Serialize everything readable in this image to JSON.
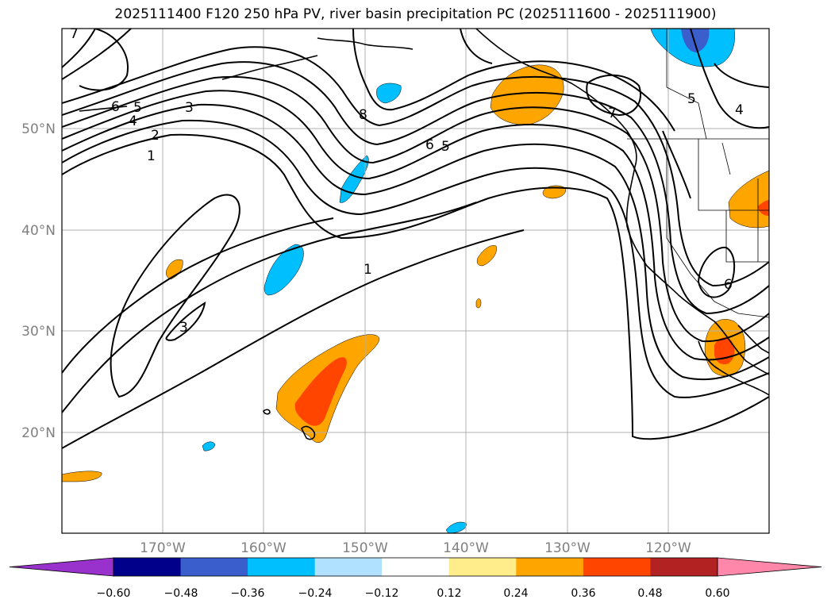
{
  "title": "2025111400 F120 250 hPa PV, river basin precipitation PC (2025111600 - 2025111900)",
  "latitude_labels": [
    "50°N",
    "40°N",
    "30°N",
    "20°N"
  ],
  "longitude_labels": [
    "170°W",
    "160°W",
    "150°W",
    "140°W",
    "130°W",
    "120°W"
  ],
  "contour_labels": [
    "7",
    "6",
    "5",
    "4",
    "3",
    "2",
    "1",
    "8",
    "6",
    "5",
    "7",
    "5",
    "4",
    "1",
    "3",
    "6"
  ],
  "colorbar": {
    "ticks": [
      "−0.60",
      "−0.48",
      "−0.36",
      "−0.24",
      "−0.12",
      "0.12",
      "0.24",
      "0.36",
      "0.48",
      "0.60"
    ],
    "colors": [
      "#9932cc",
      "#00008b",
      "#3a5fcd",
      "#00bfff",
      "#b0e2ff",
      "#ffffff",
      "#ffec8b",
      "#ffa500",
      "#ff4500",
      "#b22222",
      "#ff88aa"
    ]
  },
  "shading_colors": {
    "orange": "#ffa500",
    "red_orange": "#ff4500",
    "sky_blue": "#00bfff",
    "blue": "#3a5fcd"
  }
}
